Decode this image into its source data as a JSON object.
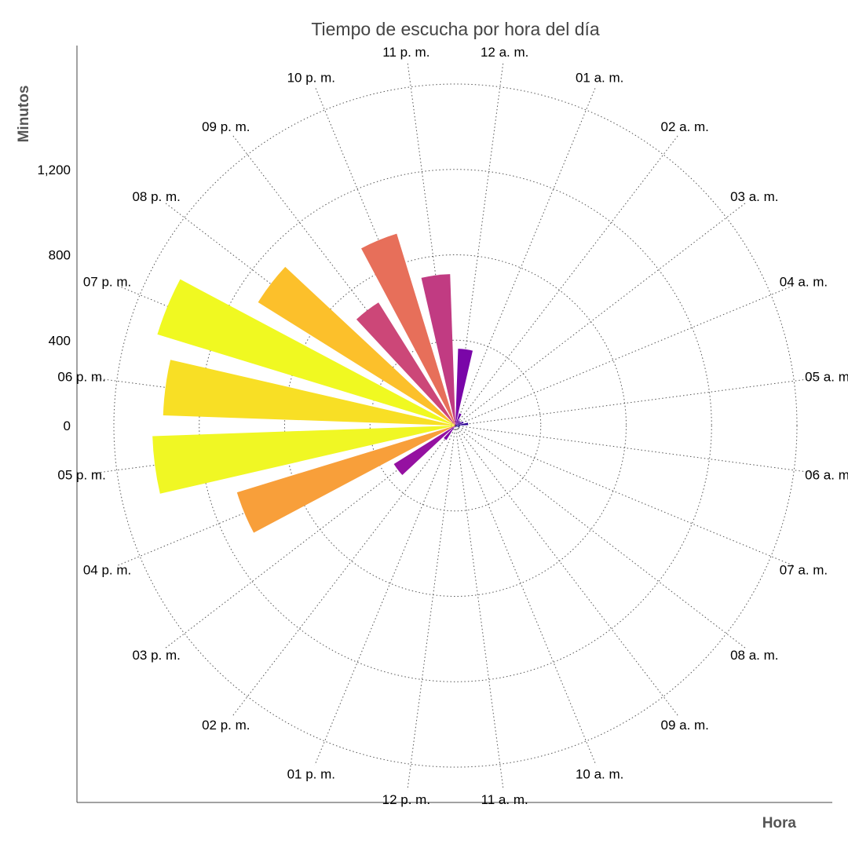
{
  "chart_data": {
    "type": "polar_bar",
    "title": "Tiempo de escucha por hora del día",
    "xlabel": "Hora",
    "ylabel": "Minutos",
    "rlim": [
      0,
      1600
    ],
    "radial_ticks": [
      0,
      400,
      800,
      1200
    ],
    "radial_tick_labels": [
      "0",
      "400",
      "800",
      "1,200"
    ],
    "grid": true,
    "direction": "clockwise, 12 a. m. at top",
    "categories": [
      "12 a. m.",
      "01 a. m.",
      "02 a. m.",
      "03 a. m.",
      "04 a. m.",
      "05 a. m.",
      "06 a. m.",
      "07 a. m.",
      "08 a. m.",
      "09 a. m.",
      "10 a. m.",
      "11 a. m.",
      "12 p. m.",
      "01 p. m.",
      "02 p. m.",
      "03 p. m.",
      "04 p. m.",
      "05 p. m.",
      "06 p. m.",
      "07 p. m.",
      "08 p. m.",
      "09 p. m.",
      "10 p. m.",
      "11 p. m."
    ],
    "values": [
      360,
      60,
      30,
      30,
      40,
      60,
      20,
      20,
      10,
      5,
      10,
      5,
      5,
      10,
      80,
      340,
      1070,
      1420,
      1370,
      1460,
      1090,
      680,
      940,
      710
    ],
    "colors": [
      "#7a06a8",
      "#6a00a8",
      "#5c01a6",
      "#4e02a2",
      "#3e049c",
      "#2c0594",
      "#1a068e",
      "#0d0887",
      "#1a068e",
      "#2c0594",
      "#3e049c",
      "#4e02a2",
      "#5c01a6",
      "#6a00a8",
      "#7e03a8",
      "#9511a1",
      "#f89f3a",
      "#f0f724",
      "#f8df25",
      "#f0f921",
      "#fcc02b",
      "#cc4778",
      "#e76f5a",
      "#c13b82"
    ]
  }
}
